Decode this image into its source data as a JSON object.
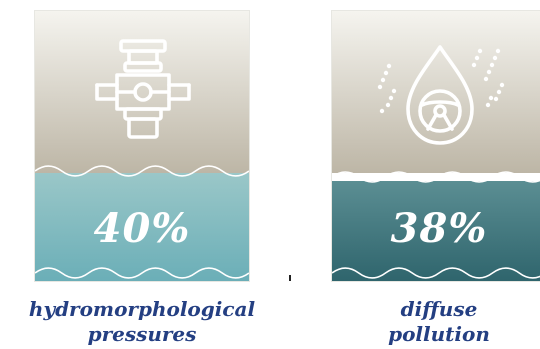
{
  "cards": [
    {
      "percentage": "40%",
      "icon": "valve-pipe-icon",
      "caption_line1": "hydromorphological",
      "caption_line2": "pressures"
    },
    {
      "percentage": "38%",
      "icon": "droplet-steering-wheel-icon",
      "caption_line1": "diffuse",
      "caption_line2": "pollution"
    }
  ],
  "colors": {
    "caption": "#243f82",
    "card1_water": "#6aaeb7",
    "card2_water": "#2e646c",
    "land_top": "#f5f4ef",
    "land_bottom": "#bdb6a6"
  }
}
